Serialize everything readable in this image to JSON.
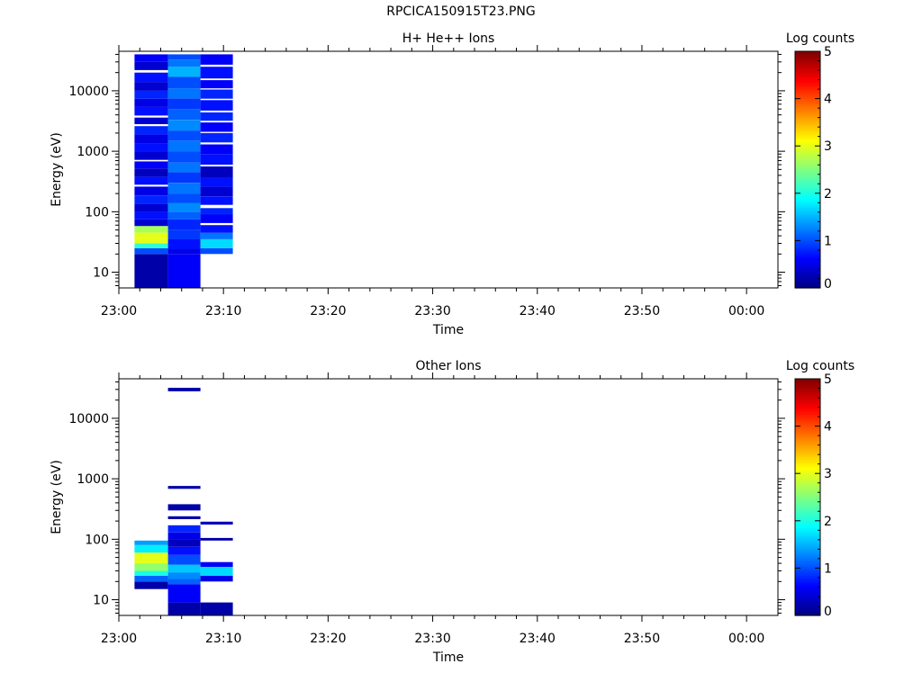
{
  "figure": {
    "title": "RPCICA150915T23.PNG"
  },
  "colors": {
    "colormap": "jet",
    "axis": "#000000",
    "background": "#ffffff"
  },
  "chart_data": [
    {
      "type": "heatmap",
      "title": "H+ He++ Ions",
      "xlabel": "Time",
      "ylabel": "Energy (eV)",
      "colorbar_label": "Log counts",
      "x_ticks": [
        "23:00",
        "23:10",
        "23:20",
        "23:30",
        "23:40",
        "23:50",
        "00:00"
      ],
      "x_range_minutes": [
        0,
        63
      ],
      "y_ticks": [
        {
          "value": 10,
          "label": "10"
        },
        {
          "value": 100,
          "label": "100"
        },
        {
          "value": 1000,
          "label": "1000"
        },
        {
          "value": 10000,
          "label": "10000"
        }
      ],
      "y_range": [
        5.5,
        45000
      ],
      "y_scale": "log",
      "colorbar_ticks": [
        {
          "value": 0,
          "label": "0"
        },
        {
          "value": 1,
          "label": "1"
        },
        {
          "value": 2,
          "label": "2"
        },
        {
          "value": 3,
          "label": "3"
        },
        {
          "value": 4,
          "label": "4"
        },
        {
          "value": 5,
          "label": "5"
        }
      ],
      "color_range": [
        0,
        5
      ],
      "columns": [
        {
          "time_start": 1.5,
          "time_end": 4.7,
          "bins": [
            {
              "e_low": 5.5,
              "e_high": 20,
              "v": 0.2
            },
            {
              "e_low": 20,
              "e_high": 25,
              "v": 1.0
            },
            {
              "e_low": 25,
              "e_high": 30,
              "v": 2.1
            },
            {
              "e_low": 30,
              "e_high": 45,
              "v": 3.0
            },
            {
              "e_low": 45,
              "e_high": 58,
              "v": 2.7
            },
            {
              "e_low": 58,
              "e_high": 75,
              "v": 0.4
            },
            {
              "e_low": 75,
              "e_high": 100,
              "v": 0.7
            },
            {
              "e_low": 100,
              "e_high": 135,
              "v": 0.4
            },
            {
              "e_low": 135,
              "e_high": 185,
              "v": 0.8
            },
            {
              "e_low": 185,
              "e_high": 260,
              "v": 0.5
            },
            {
              "e_low": 280,
              "e_high": 380,
              "v": 0.7
            },
            {
              "e_low": 380,
              "e_high": 520,
              "v": 0.3
            },
            {
              "e_low": 520,
              "e_high": 680,
              "v": 0.6
            },
            {
              "e_low": 720,
              "e_high": 1000,
              "v": 0.4
            },
            {
              "e_low": 1000,
              "e_high": 1350,
              "v": 0.7
            },
            {
              "e_low": 1350,
              "e_high": 1900,
              "v": 0.5
            },
            {
              "e_low": 1900,
              "e_high": 2600,
              "v": 0.8
            },
            {
              "e_low": 2800,
              "e_high": 3600,
              "v": 0.4
            },
            {
              "e_low": 3900,
              "e_high": 5400,
              "v": 0.7
            },
            {
              "e_low": 5400,
              "e_high": 7400,
              "v": 0.5
            },
            {
              "e_low": 7400,
              "e_high": 10000,
              "v": 0.8
            },
            {
              "e_low": 10000,
              "e_high": 14000,
              "v": 0.4
            },
            {
              "e_low": 14000,
              "e_high": 20000,
              "v": 0.7
            },
            {
              "e_low": 22000,
              "e_high": 30000,
              "v": 0.4
            },
            {
              "e_low": 30000,
              "e_high": 40000,
              "v": 0.6
            }
          ]
        },
        {
          "time_start": 4.7,
          "time_end": 7.8,
          "bins": [
            {
              "e_low": 5.5,
              "e_high": 20,
              "v": 0.6
            },
            {
              "e_low": 20,
              "e_high": 24,
              "v": 0.5
            },
            {
              "e_low": 24,
              "e_high": 35,
              "v": 0.7
            },
            {
              "e_low": 35,
              "e_high": 50,
              "v": 0.9
            },
            {
              "e_low": 50,
              "e_high": 75,
              "v": 0.8
            },
            {
              "e_low": 75,
              "e_high": 100,
              "v": 1.1
            },
            {
              "e_low": 100,
              "e_high": 140,
              "v": 1.3
            },
            {
              "e_low": 140,
              "e_high": 200,
              "v": 1.0
            },
            {
              "e_low": 200,
              "e_high": 300,
              "v": 1.2
            },
            {
              "e_low": 300,
              "e_high": 450,
              "v": 0.9
            },
            {
              "e_low": 450,
              "e_high": 650,
              "v": 1.2
            },
            {
              "e_low": 650,
              "e_high": 1000,
              "v": 1.0
            },
            {
              "e_low": 1000,
              "e_high": 1500,
              "v": 1.2
            },
            {
              "e_low": 1500,
              "e_high": 2200,
              "v": 1.0
            },
            {
              "e_low": 2200,
              "e_high": 3300,
              "v": 1.3
            },
            {
              "e_low": 3300,
              "e_high": 5000,
              "v": 1.1
            },
            {
              "e_low": 5000,
              "e_high": 7500,
              "v": 0.9
            },
            {
              "e_low": 7500,
              "e_high": 11000,
              "v": 1.2
            },
            {
              "e_low": 11000,
              "e_high": 17000,
              "v": 1.0
            },
            {
              "e_low": 17000,
              "e_high": 25000,
              "v": 1.5
            },
            {
              "e_low": 25000,
              "e_high": 33000,
              "v": 1.2
            },
            {
              "e_low": 33000,
              "e_high": 40000,
              "v": 1.0
            }
          ]
        },
        {
          "time_start": 7.8,
          "time_end": 10.9,
          "bins": [
            {
              "e_low": 20,
              "e_high": 25,
              "v": 1.0
            },
            {
              "e_low": 25,
              "e_high": 35,
              "v": 1.7
            },
            {
              "e_low": 35,
              "e_high": 45,
              "v": 1.2
            },
            {
              "e_low": 45,
              "e_high": 60,
              "v": 0.7
            },
            {
              "e_low": 65,
              "e_high": 90,
              "v": 0.6
            },
            {
              "e_low": 90,
              "e_high": 115,
              "v": 0.8
            },
            {
              "e_low": 130,
              "e_high": 180,
              "v": 0.7
            },
            {
              "e_low": 180,
              "e_high": 260,
              "v": 0.4
            },
            {
              "e_low": 260,
              "e_high": 360,
              "v": 0.7
            },
            {
              "e_low": 360,
              "e_high": 560,
              "v": 0.3
            },
            {
              "e_low": 600,
              "e_high": 900,
              "v": 0.7
            },
            {
              "e_low": 900,
              "e_high": 1300,
              "v": 0.6
            },
            {
              "e_low": 1400,
              "e_high": 2000,
              "v": 0.8
            },
            {
              "e_low": 2100,
              "e_high": 3000,
              "v": 0.6
            },
            {
              "e_low": 3200,
              "e_high": 4400,
              "v": 0.8
            },
            {
              "e_low": 4700,
              "e_high": 7000,
              "v": 0.7
            },
            {
              "e_low": 7400,
              "e_high": 10500,
              "v": 0.8
            },
            {
              "e_low": 11000,
              "e_high": 15000,
              "v": 0.6
            },
            {
              "e_low": 16000,
              "e_high": 25000,
              "v": 0.7
            },
            {
              "e_low": 27000,
              "e_high": 40000,
              "v": 0.6
            }
          ]
        }
      ]
    },
    {
      "type": "heatmap",
      "title": "Other Ions",
      "xlabel": "Time",
      "ylabel": "Energy (eV)",
      "colorbar_label": "Log counts",
      "x_ticks": [
        "23:00",
        "23:10",
        "23:20",
        "23:30",
        "23:40",
        "23:50",
        "00:00"
      ],
      "x_range_minutes": [
        0,
        63
      ],
      "y_ticks": [
        {
          "value": 10,
          "label": "10"
        },
        {
          "value": 100,
          "label": "100"
        },
        {
          "value": 1000,
          "label": "1000"
        },
        {
          "value": 10000,
          "label": "10000"
        }
      ],
      "y_range": [
        5.5,
        45000
      ],
      "y_scale": "log",
      "colorbar_ticks": [
        {
          "value": 0,
          "label": "0"
        },
        {
          "value": 1,
          "label": "1"
        },
        {
          "value": 2,
          "label": "2"
        },
        {
          "value": 3,
          "label": "3"
        },
        {
          "value": 4,
          "label": "4"
        },
        {
          "value": 5,
          "label": "5"
        }
      ],
      "color_range": [
        0,
        5
      ],
      "columns": [
        {
          "time_start": 1.5,
          "time_end": 4.7,
          "bins": [
            {
              "e_low": 15,
              "e_high": 20,
              "v": 0.2
            },
            {
              "e_low": 20,
              "e_high": 25,
              "v": 1.1
            },
            {
              "e_low": 25,
              "e_high": 30,
              "v": 2.0
            },
            {
              "e_low": 30,
              "e_high": 40,
              "v": 2.6
            },
            {
              "e_low": 40,
              "e_high": 60,
              "v": 3.0
            },
            {
              "e_low": 60,
              "e_high": 80,
              "v": 1.8
            },
            {
              "e_low": 80,
              "e_high": 95,
              "v": 1.4
            }
          ]
        },
        {
          "time_start": 4.7,
          "time_end": 7.8,
          "bins": [
            {
              "e_low": 5.5,
              "e_high": 9,
              "v": 0.2
            },
            {
              "e_low": 9,
              "e_high": 18,
              "v": 0.6
            },
            {
              "e_low": 18,
              "e_high": 22,
              "v": 1.1
            },
            {
              "e_low": 22,
              "e_high": 28,
              "v": 1.3
            },
            {
              "e_low": 28,
              "e_high": 38,
              "v": 1.6
            },
            {
              "e_low": 38,
              "e_high": 55,
              "v": 1.0
            },
            {
              "e_low": 55,
              "e_high": 75,
              "v": 0.7
            },
            {
              "e_low": 75,
              "e_high": 100,
              "v": 0.3
            },
            {
              "e_low": 100,
              "e_high": 130,
              "v": 0.5
            },
            {
              "e_low": 130,
              "e_high": 170,
              "v": 0.8
            },
            {
              "e_low": 215,
              "e_high": 240,
              "v": 0.2
            },
            {
              "e_low": 300,
              "e_high": 380,
              "v": 0.2
            },
            {
              "e_low": 680,
              "e_high": 760,
              "v": 0.2
            },
            {
              "e_low": 28000,
              "e_high": 32000,
              "v": 0.2
            }
          ]
        },
        {
          "time_start": 7.8,
          "time_end": 10.9,
          "bins": [
            {
              "e_low": 5.5,
              "e_high": 9,
              "v": 0.2
            },
            {
              "e_low": 20,
              "e_high": 25,
              "v": 0.5
            },
            {
              "e_low": 25,
              "e_high": 35,
              "v": 1.7
            },
            {
              "e_low": 35,
              "e_high": 42,
              "v": 0.6
            },
            {
              "e_low": 95,
              "e_high": 105,
              "v": 0.2
            },
            {
              "e_low": 175,
              "e_high": 195,
              "v": 0.3
            }
          ]
        }
      ]
    }
  ]
}
